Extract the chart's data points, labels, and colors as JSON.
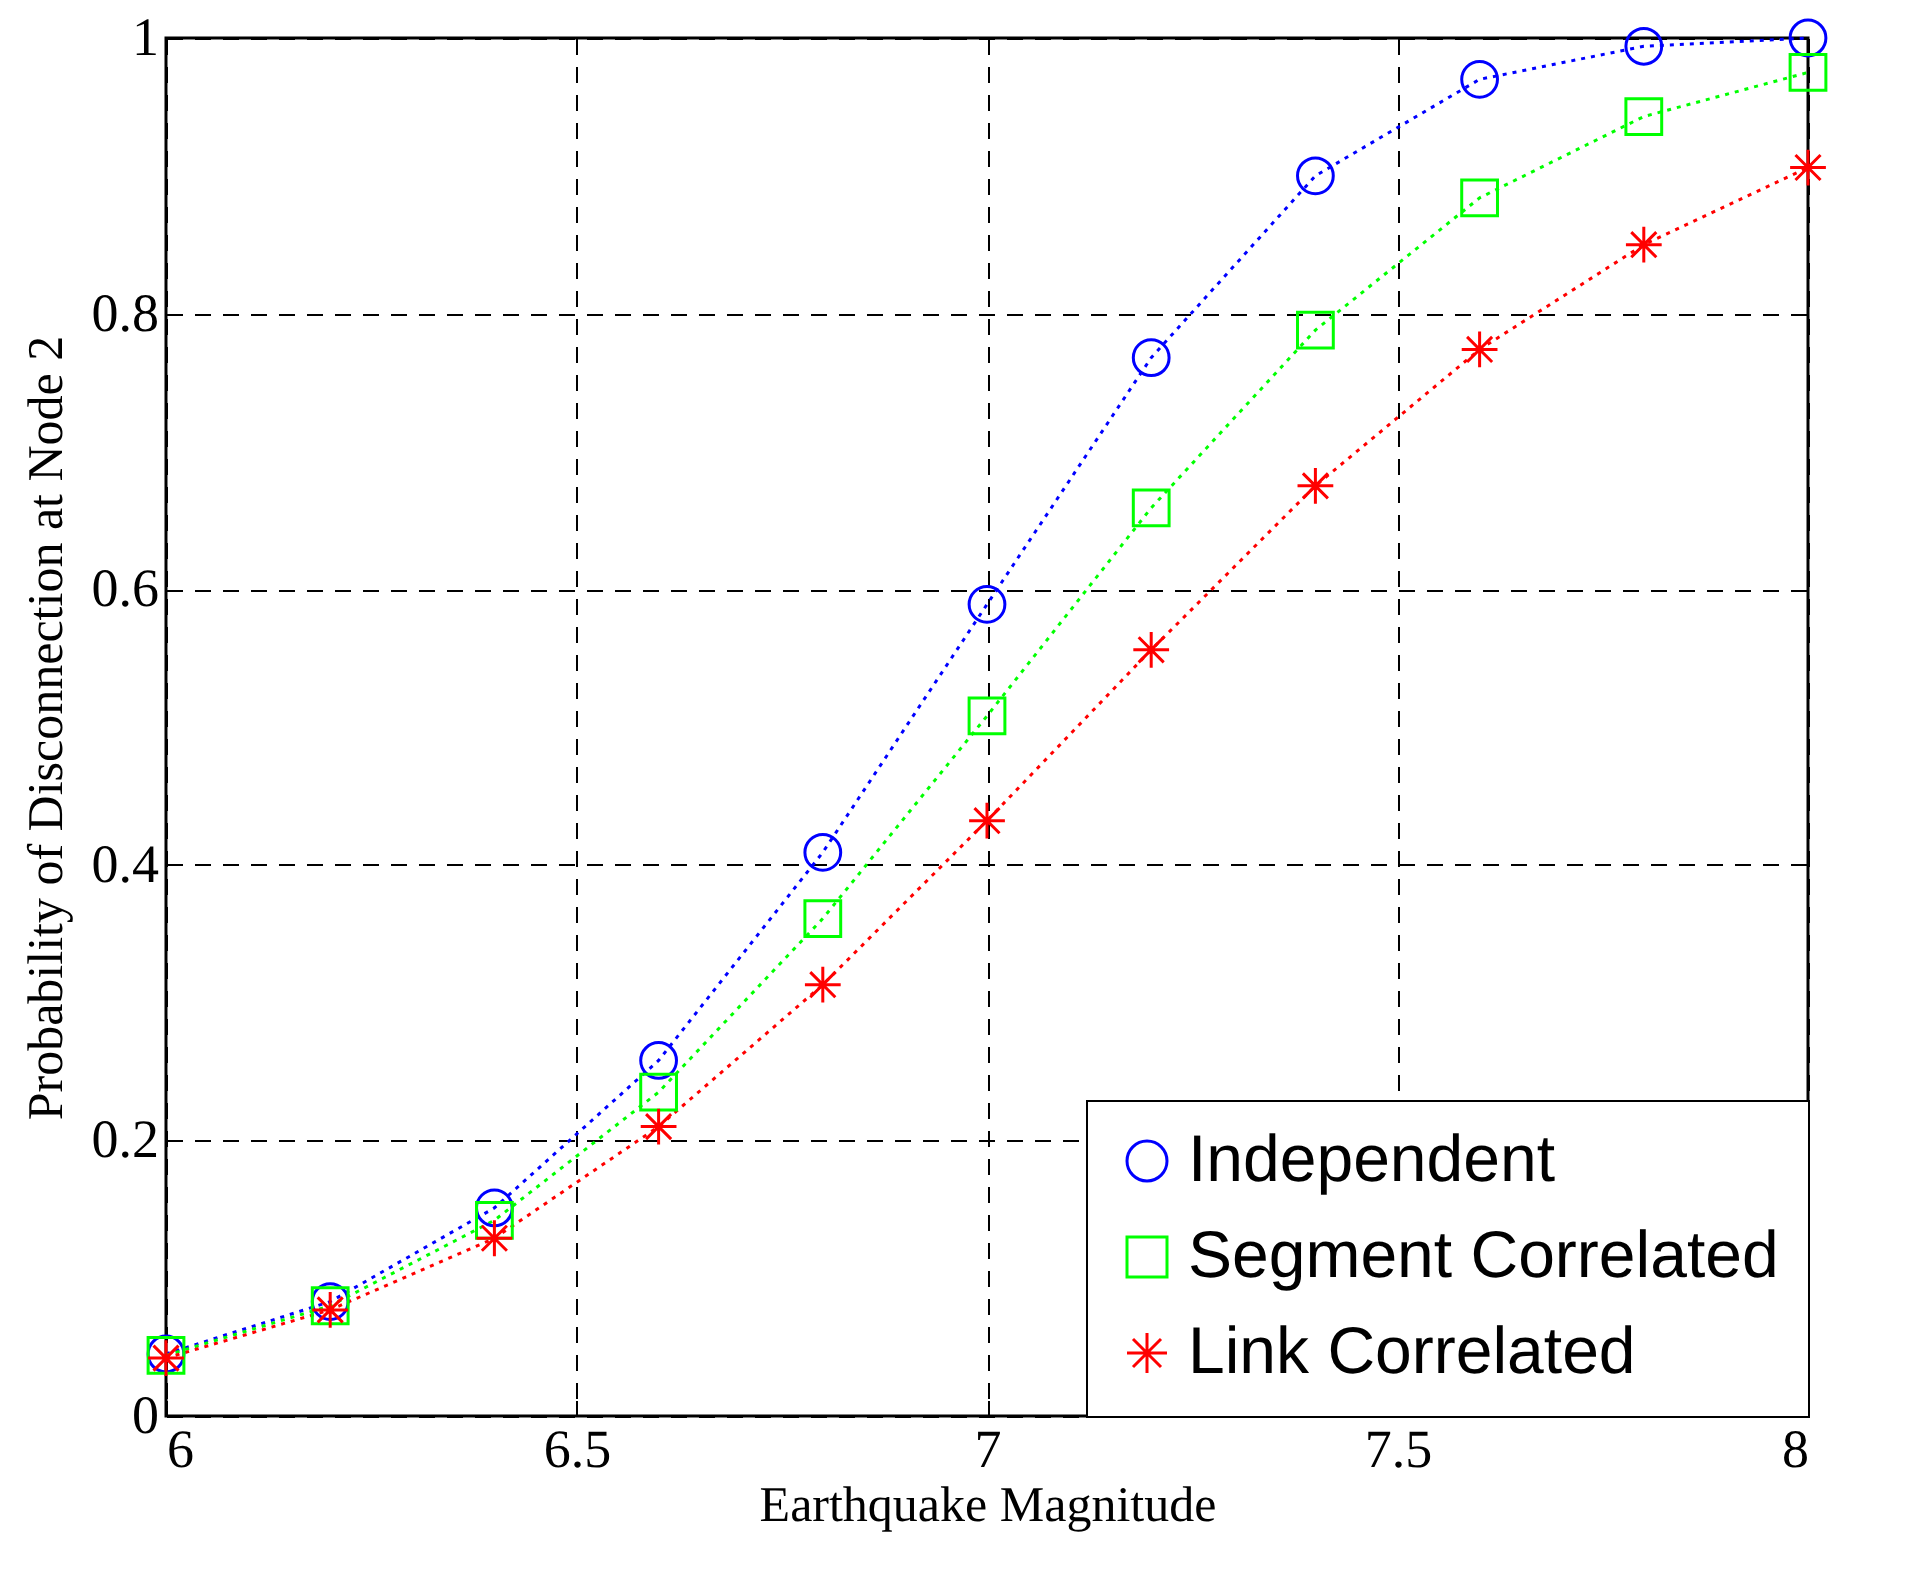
{
  "chart_data": {
    "type": "line",
    "xlabel": "Earthquake Magnitude",
    "ylabel": "Probability of Disconnection at Node 2",
    "x": [
      6,
      6.2,
      6.4,
      6.6,
      6.8,
      7,
      7.2,
      7.4,
      7.6,
      7.8,
      8
    ],
    "series": [
      {
        "name": "Independent",
        "color": "#0000ff",
        "marker": "circle",
        "values": [
          0.045,
          0.083,
          0.151,
          0.258,
          0.409,
          0.589,
          0.768,
          0.9,
          0.97,
          0.994,
          1.0
        ]
      },
      {
        "name": "Segment Correlated",
        "color": "#00ff00",
        "marker": "square",
        "values": [
          0.044,
          0.08,
          0.142,
          0.235,
          0.361,
          0.508,
          0.659,
          0.788,
          0.884,
          0.943,
          0.975
        ]
      },
      {
        "name": "Link Correlated",
        "color": "#ff0000",
        "marker": "cross",
        "values": [
          0.042,
          0.077,
          0.129,
          0.21,
          0.313,
          0.432,
          0.556,
          0.675,
          0.774,
          0.85,
          0.906
        ]
      }
    ],
    "xlim": [
      6,
      8
    ],
    "xticks": [
      6,
      6.5,
      7,
      7.5,
      8
    ],
    "ylim": [
      0,
      1
    ],
    "yticks": [
      0,
      0.2,
      0.4,
      0.6,
      0.8,
      1
    ],
    "grid": true,
    "legend": "bottom right",
    "line_style": "dotted"
  }
}
